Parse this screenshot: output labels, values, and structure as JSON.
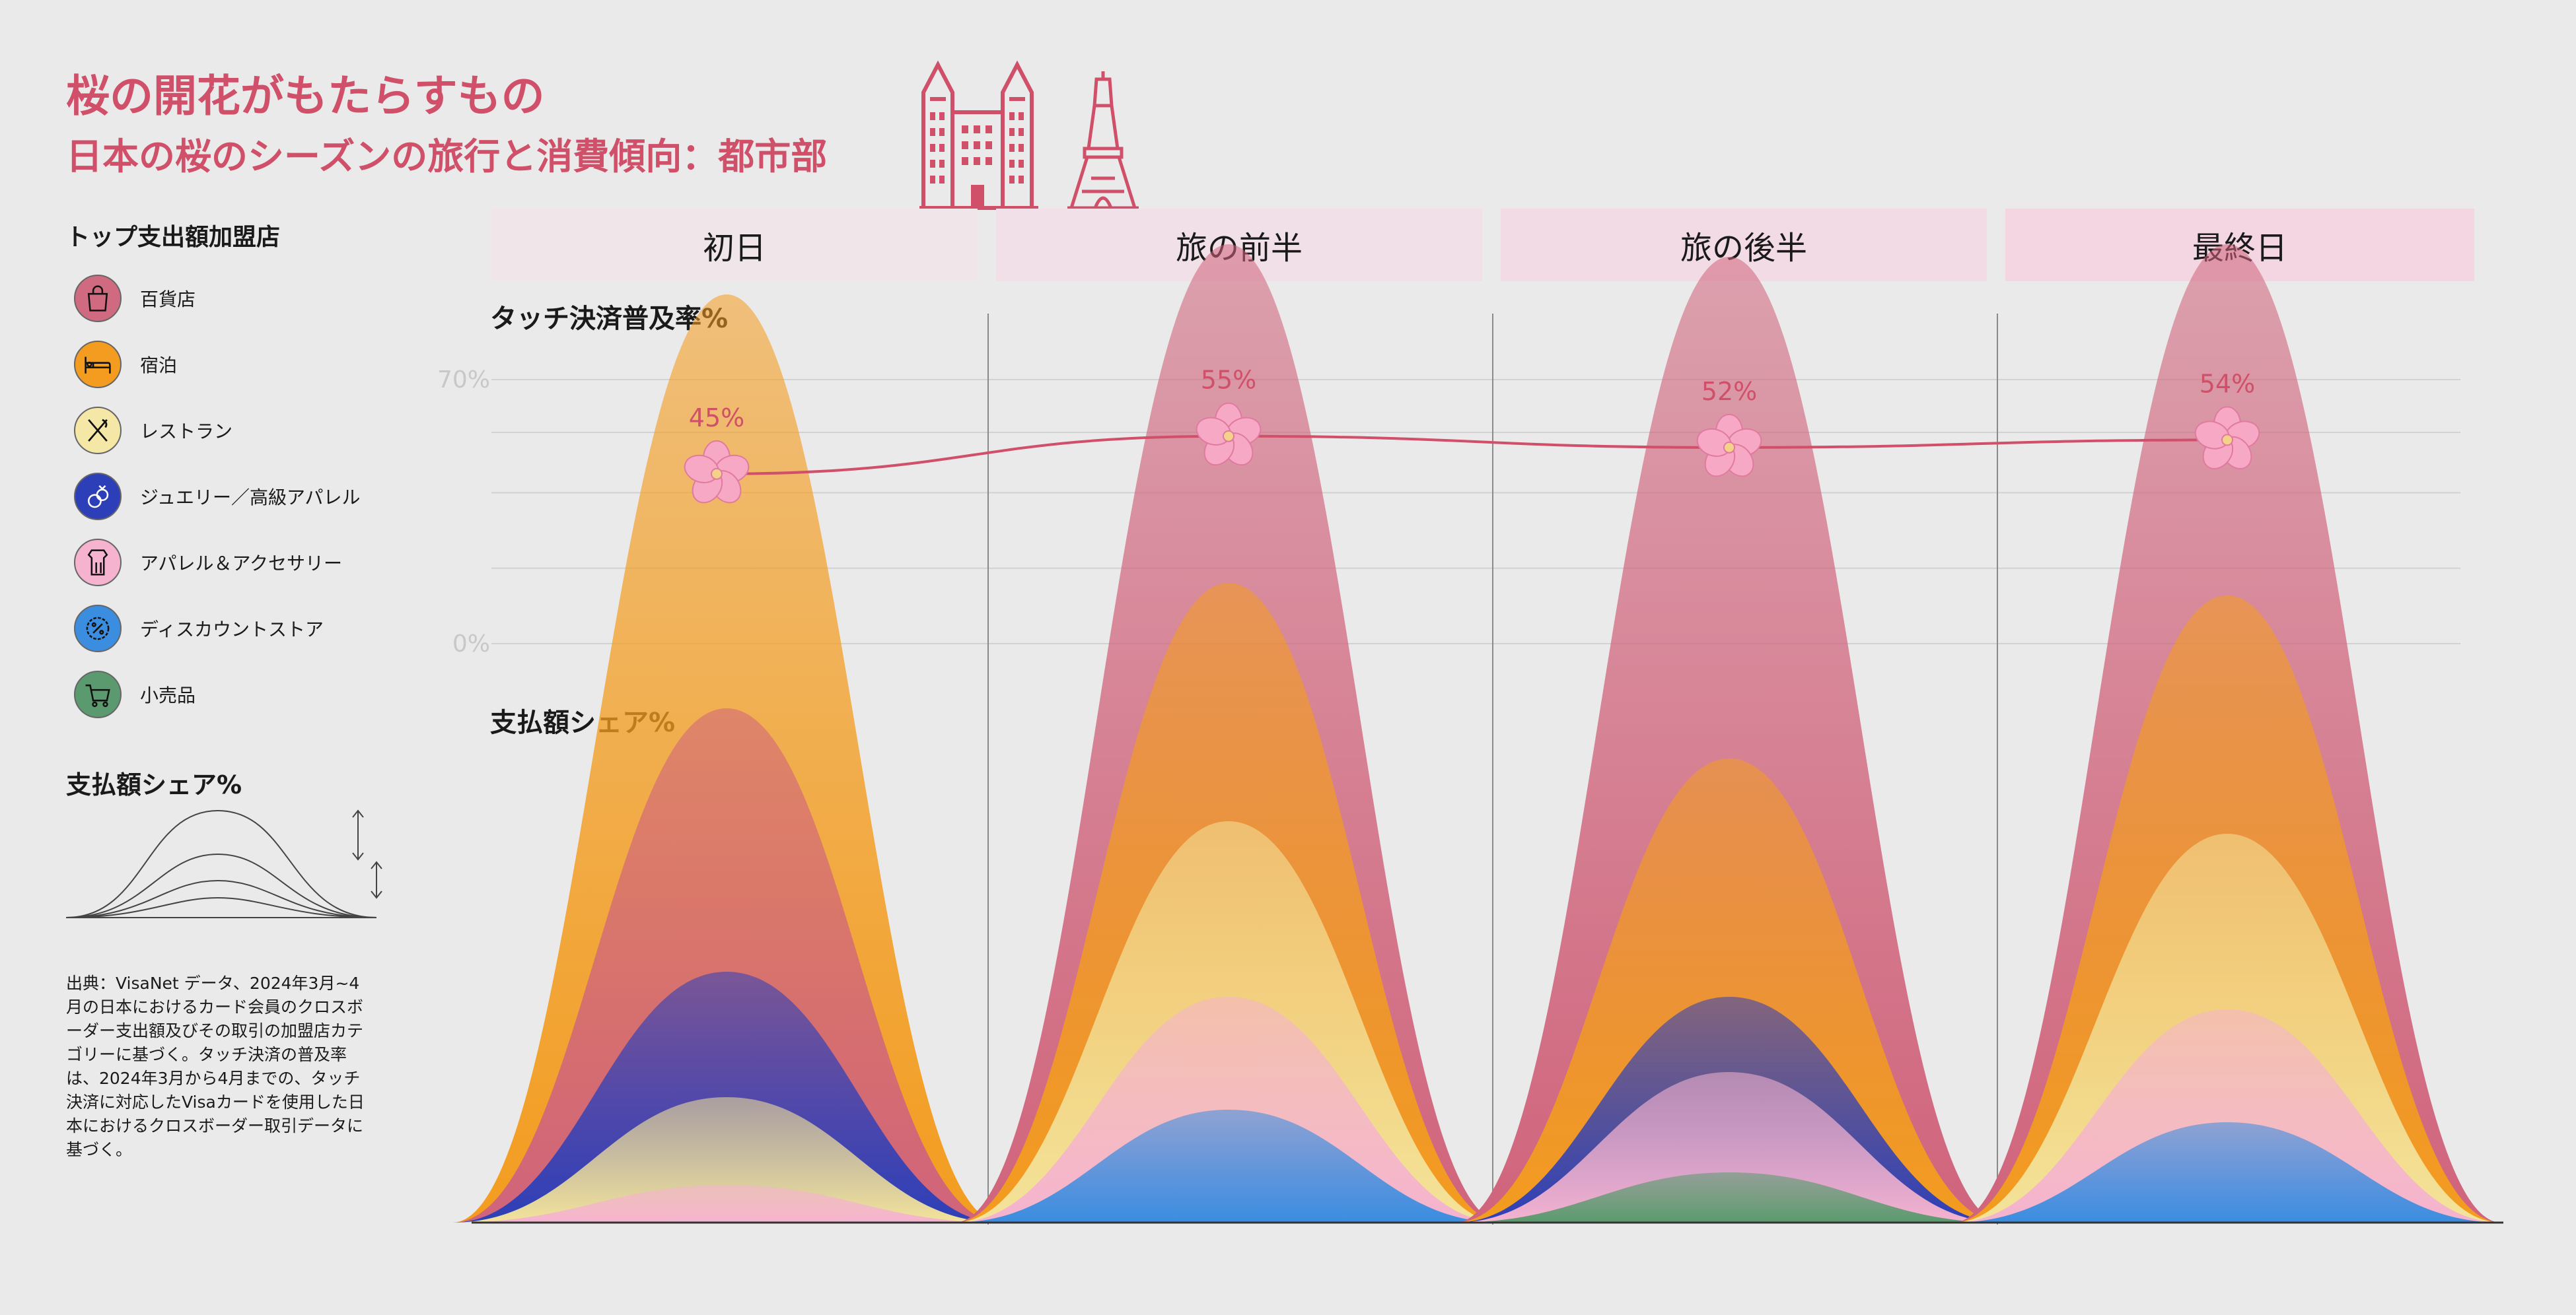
{
  "header": {
    "title": "桜の開花がもたらすもの",
    "subtitle": "日本の桜のシーズンの旅行と消費傾向：都市部"
  },
  "legend": {
    "title": "トップ支出額加盟店",
    "items": [
      {
        "label": "百貨店",
        "icon": "shopping-bag-icon",
        "color": "#d0647c"
      },
      {
        "label": "宿泊",
        "icon": "bed-icon",
        "color": "#f39c1f"
      },
      {
        "label": "レストラン",
        "icon": "fork-knife-icon",
        "color": "#f3e39a"
      },
      {
        "label": "ジュエリー／高級アパレル",
        "icon": "ring-icon",
        "color": "#2d3fb8"
      },
      {
        "label": "アパレル＆アクセサリー",
        "icon": "clothing-icon",
        "color": "#f5b3cf"
      },
      {
        "label": "ディスカウントストア",
        "icon": "discount-badge-icon",
        "color": "#3b8de0"
      },
      {
        "label": "小売品",
        "icon": "cart-icon",
        "color": "#5a9a6e"
      }
    ]
  },
  "key": {
    "title": "支払額シェア%"
  },
  "source_note": "出典：VisaNet データ、2024年3月~4月の日本におけるカード会員のクロスボーダー支出額及びその取引の加盟店カテゴリーに基づく。タッチ決済の普及率は、2024年3月から4月までの、タッチ決済に対応したVisaカードを使用した日本におけるクロスボーダー取引データに基づく。",
  "phases": [
    "初日",
    "旅の前半",
    "旅の後半",
    "最終日"
  ],
  "contactless_label": "タッチ決済普及率%",
  "share_label": "支払額シェア%",
  "colors": {
    "accent": "#d0506a",
    "band": "#f2dfe6",
    "grid": "#d2d2d2",
    "divider": "#8a8a8a",
    "blossom": "#f7a8c4"
  },
  "chart_data": [
    {
      "type": "line",
      "title": "タッチ決済普及率%",
      "x": [
        "初日",
        "旅の前半",
        "旅の後半",
        "最終日"
      ],
      "series": [
        {
          "values": [
            45,
            55,
            52,
            54
          ]
        }
      ],
      "data_labels": [
        "45%",
        "55%",
        "52%",
        "54%"
      ],
      "y_ticks": [
        "70%",
        "0%"
      ],
      "ylim": [
        0,
        70
      ],
      "grid": true,
      "marker": "cherry-blossom"
    },
    {
      "type": "area",
      "title": "支払額シェア%",
      "categories": [
        "初日",
        "旅の前半",
        "旅の後半",
        "最終日"
      ],
      "series": [
        {
          "name": "宿泊",
          "values": [
            33,
            0,
            0,
            0
          ]
        },
        {
          "name": "百貨店",
          "values": [
            21,
            27,
            40,
            28
          ]
        },
        {
          "name": "宿泊",
          "values": [
            0,
            19,
            19,
            19
          ]
        },
        {
          "name": "ジュエリー／高級アパレル",
          "values": [
            10,
            0,
            6,
            0
          ]
        },
        {
          "name": "レストラン",
          "values": [
            7,
            14,
            0,
            14
          ]
        },
        {
          "name": "アパレル＆アクセサリー",
          "values": [
            3,
            9,
            8,
            9
          ]
        },
        {
          "name": "ディスカウントストア",
          "values": [
            0,
            9,
            0,
            8
          ]
        },
        {
          "name": "小売品",
          "values": [
            0,
            0,
            4,
            0
          ]
        }
      ]
    }
  ]
}
